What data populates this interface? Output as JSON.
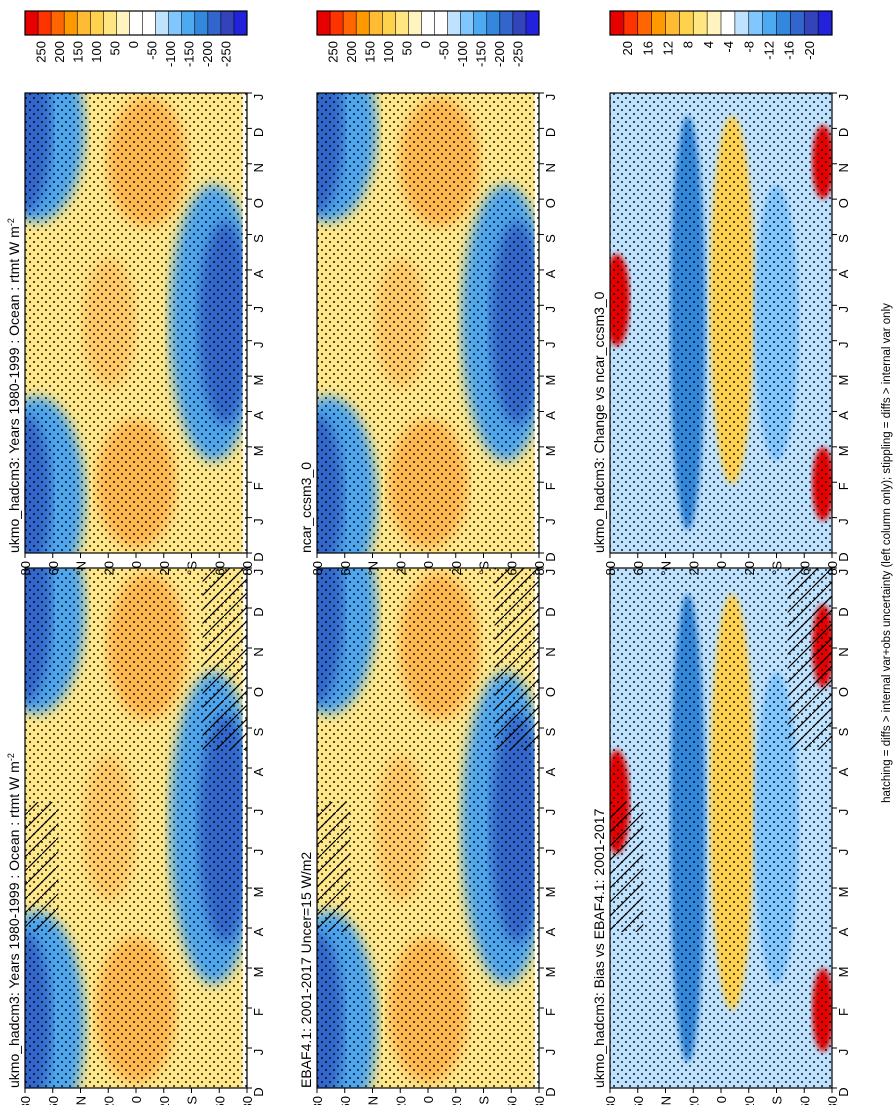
{
  "figure": {
    "caption": "hatching = diffs > internal var+obs uncertainty (left column only); stippling = diffs > internal var only"
  },
  "chart_data": [
    {
      "id": "panel-1",
      "type": "heatmap",
      "title": "ukmo_hadcm3: Years 1980-1999 : Ocean : rtmt W m",
      "title_sup": "-2",
      "x_axis": "latitude",
      "x_ticks": [
        "80",
        "60",
        "°N",
        "20",
        "0",
        "20",
        "°S",
        "60",
        "80"
      ],
      "y_axis": "month",
      "months": [
        "D",
        "J",
        "F",
        "M",
        "A",
        "M",
        "J",
        "J",
        "A",
        "S",
        "O",
        "N",
        "D",
        "J"
      ],
      "colorbar": [
        "250",
        "200",
        "150",
        "100",
        "50",
        "0",
        "-50",
        "-100",
        "-150",
        "-200",
        "-250"
      ],
      "stippling": true,
      "hatching": true
    },
    {
      "id": "panel-2",
      "type": "heatmap",
      "title": "EBAF4.1: 2001-2017 Uncer=15 W/m2",
      "x_axis": "latitude",
      "x_ticks": [
        "80",
        "60",
        "°N",
        "20",
        "0",
        "20",
        "°S",
        "60",
        "80"
      ],
      "y_axis": "month",
      "months": [
        "D",
        "J",
        "F",
        "M",
        "A",
        "M",
        "J",
        "J",
        "A",
        "S",
        "O",
        "N",
        "D",
        "J"
      ],
      "colorbar": [
        "250",
        "200",
        "150",
        "100",
        "50",
        "0",
        "-50",
        "-100",
        "-150",
        "-200",
        "-250"
      ],
      "stippling": true,
      "hatching": true
    },
    {
      "id": "panel-3",
      "type": "heatmap",
      "title": "ukmo_hadcm3: Bias vs EBAF4.1: 2001-2017",
      "x_axis": "latitude",
      "x_ticks": [
        "80",
        "60",
        "°N",
        "20",
        "0",
        "20",
        "°S",
        "60",
        "80"
      ],
      "y_axis": "month",
      "months": [
        "D",
        "J",
        "F",
        "M",
        "A",
        "M",
        "J",
        "J",
        "A",
        "S",
        "O",
        "N",
        "D",
        "J"
      ],
      "colorbar": [
        "20",
        "16",
        "12",
        "8",
        "4",
        "-4",
        "-8",
        "-12",
        "-16",
        "-20"
      ],
      "stippling": true,
      "hatching": true
    },
    {
      "id": "panel-4",
      "type": "heatmap",
      "title": "ukmo_hadcm3: Years 1980-1999 : Ocean : rtmt W m",
      "title_sup": "-2",
      "x_axis": "latitude",
      "x_ticks": [
        "80",
        "60",
        "°N",
        "20",
        "0",
        "20",
        "°S",
        "60",
        "80"
      ],
      "y_axis": "month",
      "months": [
        "D",
        "J",
        "F",
        "M",
        "A",
        "M",
        "J",
        "J",
        "A",
        "S",
        "O",
        "N",
        "D",
        "J"
      ],
      "colorbar": [
        "250",
        "200",
        "150",
        "100",
        "50",
        "0",
        "-50",
        "-100",
        "-150",
        "-200",
        "-250"
      ],
      "stippling": true,
      "hatching": false
    },
    {
      "id": "panel-5",
      "type": "heatmap",
      "title": "ncar_ccsm3_0",
      "x_axis": "latitude",
      "x_ticks": [
        "80",
        "60",
        "°N",
        "20",
        "0",
        "20",
        "°S",
        "60",
        "80"
      ],
      "y_axis": "month",
      "months": [
        "D",
        "J",
        "F",
        "M",
        "A",
        "M",
        "J",
        "J",
        "A",
        "S",
        "O",
        "N",
        "D",
        "J"
      ],
      "colorbar": [
        "250",
        "200",
        "150",
        "100",
        "50",
        "0",
        "-50",
        "-100",
        "-150",
        "-200",
        "-250"
      ],
      "stippling": true,
      "hatching": false
    },
    {
      "id": "panel-6",
      "type": "heatmap",
      "title": "ukmo_hadcm3: Change vs ncar_ccsm3_0",
      "x_axis": "latitude",
      "x_ticks": [
        "80",
        "60",
        "°N",
        "20",
        "0",
        "20",
        "°S",
        "60",
        "80"
      ],
      "y_axis": "month",
      "months": [
        "D",
        "J",
        "F",
        "M",
        "A",
        "M",
        "J",
        "J",
        "A",
        "S",
        "O",
        "N",
        "D",
        "J"
      ],
      "colorbar": [
        "20",
        "16",
        "12",
        "8",
        "4",
        "-4",
        "-8",
        "-12",
        "-16",
        "-20"
      ],
      "stippling": true,
      "hatching": false
    }
  ]
}
